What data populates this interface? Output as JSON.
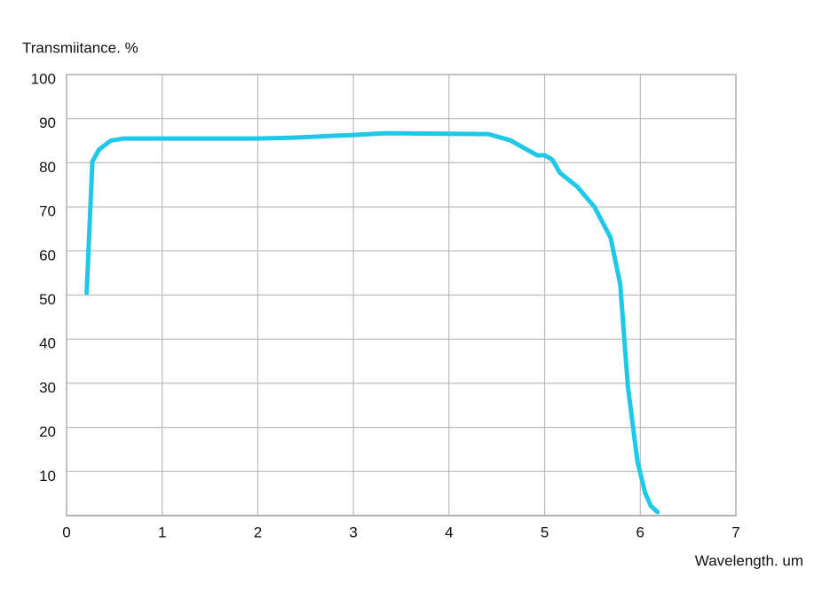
{
  "chart_data": {
    "type": "line",
    "y_label": "Transmiitance. %",
    "x_label": "Wavelength. um",
    "x": [
      0.21,
      0.27,
      0.34,
      0.46,
      0.6,
      2.0,
      2.37,
      3.0,
      3.34,
      4.41,
      4.64,
      4.92,
      5.0,
      5.08,
      5.16,
      5.34,
      5.52,
      5.69,
      5.79,
      5.87,
      5.97,
      6.05,
      6.11,
      6.18
    ],
    "series": [
      {
        "color": "#1ec8e8",
        "values": [
          50.5,
          80.3,
          83,
          85,
          85.5,
          85.5,
          85.7,
          86.3,
          86.7,
          86.5,
          85.1,
          81.7,
          81.7,
          80.7,
          77.7,
          74.6,
          70,
          63,
          52.5,
          29.4,
          12.3,
          5.2,
          2.2,
          0.8
        ]
      }
    ],
    "xlim": [
      0,
      7
    ],
    "xticks": [
      0,
      1,
      2,
      3,
      4,
      5,
      6,
      7
    ],
    "ylim": [
      0,
      100
    ],
    "yticks": [
      10,
      20,
      30,
      40,
      50,
      60,
      70,
      80,
      90,
      100
    ],
    "grid": true
  }
}
